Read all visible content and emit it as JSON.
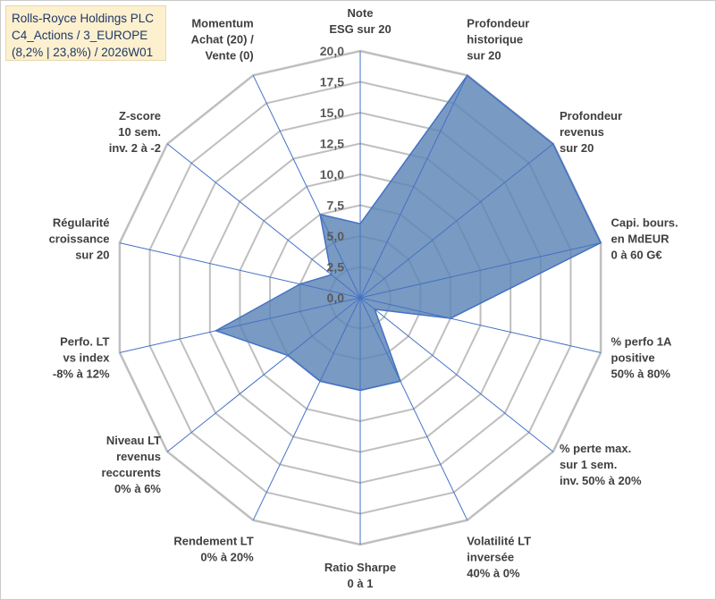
{
  "title_box": {
    "line1": "Rolls-Royce Holdings PLC",
    "line2": "C4_Actions / 3_EUROPE",
    "line3": "(8,2% | 23,8%) / 2026W01"
  },
  "colors": {
    "fill": "#5b84b5",
    "stroke": "#4472c4",
    "grid": "#bfbfbf",
    "title_bg": "#fdf0cf",
    "title_text": "#1f3864"
  },
  "chart_data": {
    "type": "radar",
    "r_min": 0,
    "r_max": 20,
    "r_ticks": [
      "0,0",
      "2,5",
      "5,0",
      "7,5",
      "10,0",
      "12,5",
      "15,0",
      "17,5",
      "20,0"
    ],
    "axes": [
      [
        "Note",
        "ESG sur 20"
      ],
      [
        "Profondeur",
        "historique",
        "sur 20"
      ],
      [
        "Profondeur",
        "revenus",
        "sur 20"
      ],
      [
        "Capi. bours.",
        "en MdEUR",
        "0 à 60 G€"
      ],
      [
        "% perfo 1A",
        "positive",
        "50% à 80%"
      ],
      [
        "% perte max.",
        "sur 1 sem.",
        "inv. 50% à 20%"
      ],
      [
        "Volatilité LT",
        "inversée",
        "40% à 0%"
      ],
      [
        "Ratio Sharpe",
        "0 à 1"
      ],
      [
        "Rendement LT",
        "0% à 20%"
      ],
      [
        "Niveau LT",
        "revenus",
        "reccurents",
        "0% à 6%"
      ],
      [
        "Perfo. LT",
        "vs index",
        "-8% à 12%"
      ],
      [
        "Régularité",
        "croissance",
        "sur 20"
      ],
      [
        "Z-score",
        "10 sem.",
        "inv. 2 à -2"
      ],
      [
        "Momentum",
        "Achat (20) /",
        "Vente (0)"
      ]
    ],
    "series": [
      {
        "values": [
          6.0,
          20.0,
          20.0,
          20.0,
          7.5,
          1.5,
          7.5,
          7.5,
          7.5,
          7.5,
          12.0,
          5.0,
          3.0,
          7.5
        ]
      }
    ],
    "grid": true,
    "legend": "none"
  }
}
